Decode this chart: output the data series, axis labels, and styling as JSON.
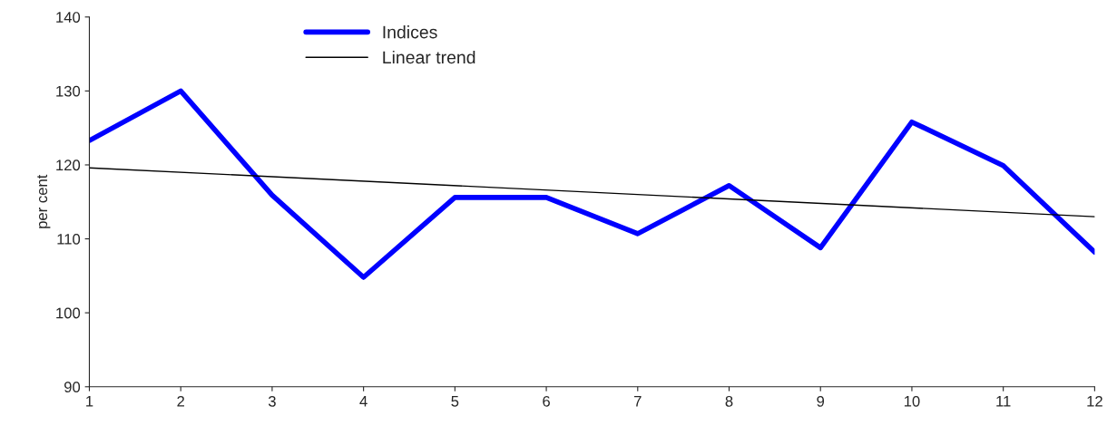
{
  "chart_data": {
    "type": "line",
    "ylabel": "per cent",
    "x": [
      1,
      2,
      3,
      4,
      5,
      6,
      7,
      8,
      9,
      10,
      11,
      12
    ],
    "series": [
      {
        "name": "Indices",
        "color": "#0000ff",
        "values": [
          123.3,
          130,
          115.9,
          104.8,
          115.6,
          115.6,
          110.7,
          117.2,
          108.8,
          125.8,
          119.9,
          108.2
        ]
      },
      {
        "name": "Linear trend",
        "color": "#000000",
        "x": [
          1,
          12
        ],
        "values": [
          119.6,
          113.0
        ]
      }
    ],
    "xlim": [
      1,
      12
    ],
    "xticks": [
      1,
      2,
      3,
      4,
      5,
      6,
      7,
      8,
      9,
      10,
      11,
      12
    ],
    "ylim": [
      90,
      140
    ],
    "yticks": [
      90,
      100,
      110,
      120,
      130,
      140
    ],
    "grid": false,
    "legend": "top",
    "marker": "none",
    "line_style": "solid"
  }
}
